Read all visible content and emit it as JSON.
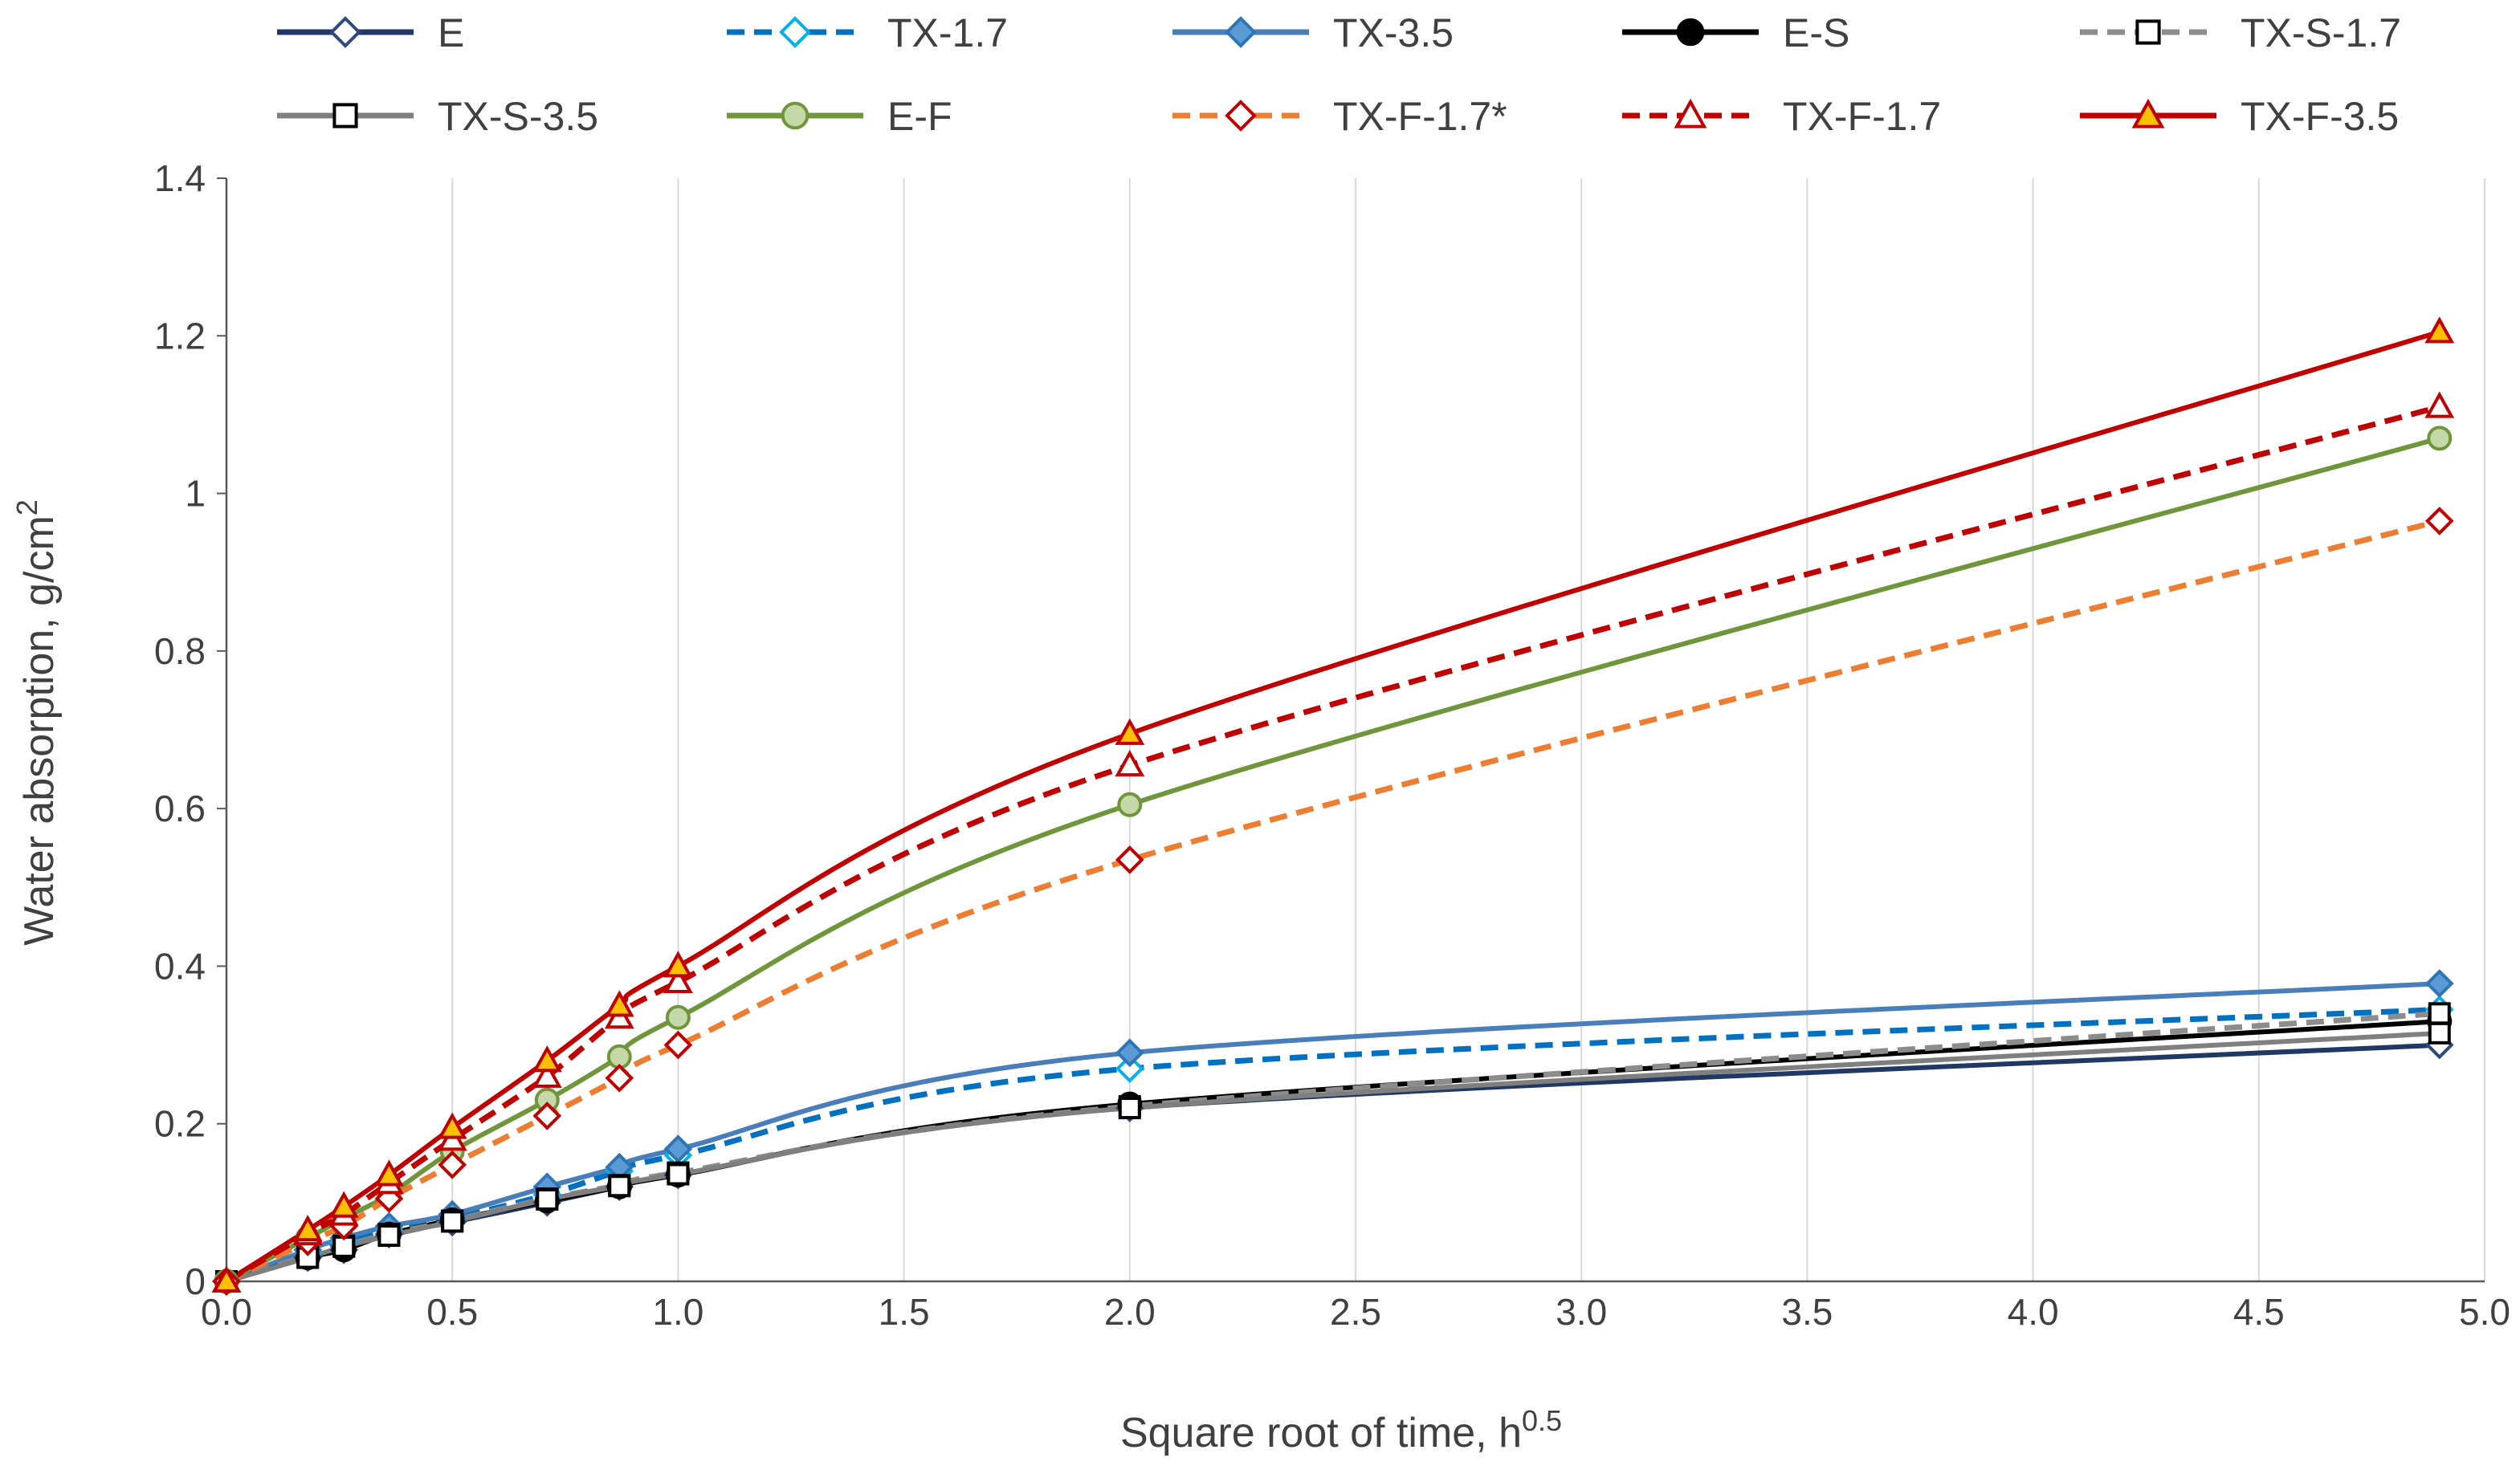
{
  "chart_data": {
    "type": "line",
    "title": "",
    "xlabel": "Square root of time, h",
    "xlabel_superscript": "0.5",
    "ylabel": "Water absorption, g/cm",
    "ylabel_superscript": "2",
    "xlim": [
      0,
      5
    ],
    "ylim": [
      0,
      1.4
    ],
    "x_ticks": [
      "0.0",
      "0.5",
      "1.0",
      "1.5",
      "2.0",
      "2.5",
      "3.0",
      "3.5",
      "4.0",
      "4.5",
      "5.0"
    ],
    "y_ticks": [
      "0",
      "0.2",
      "0.4",
      "0.6",
      "0.8",
      "1",
      "1.2",
      "1.4"
    ],
    "grid": "vertical",
    "legend_position": "top",
    "x": [
      0,
      0.18,
      0.26,
      0.36,
      0.5,
      0.71,
      0.87,
      1.0,
      2.0,
      4.9
    ],
    "series": [
      {
        "name": "E",
        "color": "#1f3864",
        "dash": "solid",
        "marker": "diamond-open",
        "values": [
          0,
          0.03,
          0.04,
          0.06,
          0.075,
          0.1,
          0.12,
          0.135,
          0.22,
          0.3
        ]
      },
      {
        "name": "TX-1.7",
        "color": "#0070c0",
        "dash": "dashed",
        "marker": "diamond-open-cyan",
        "values": [
          0,
          0.035,
          0.05,
          0.065,
          0.08,
          0.11,
          0.14,
          0.16,
          0.27,
          0.345
        ]
      },
      {
        "name": "TX-3.5",
        "color": "#4a7ebb",
        "dash": "solid",
        "marker": "diamond-filled",
        "values": [
          0,
          0.04,
          0.055,
          0.07,
          0.085,
          0.12,
          0.145,
          0.168,
          0.29,
          0.378
        ]
      },
      {
        "name": "E-S",
        "color": "#000000",
        "dash": "solid",
        "marker": "circle-filled",
        "values": [
          0,
          0.03,
          0.04,
          0.06,
          0.078,
          0.102,
          0.12,
          0.135,
          0.225,
          0.33
        ]
      },
      {
        "name": "TX-S-1.7",
        "color": "#8c8c8c",
        "dash": "dashed",
        "marker": "square-open",
        "values": [
          0,
          0.032,
          0.045,
          0.06,
          0.077,
          0.105,
          0.122,
          0.138,
          0.222,
          0.34
        ]
      },
      {
        "name": "TX-S-3.5",
        "color": "#7f7f7f",
        "dash": "solid",
        "marker": "square-open-black",
        "values": [
          0,
          0.03,
          0.044,
          0.058,
          0.076,
          0.104,
          0.121,
          0.136,
          0.22,
          0.315
        ]
      },
      {
        "name": "E-F",
        "color": "#70963c",
        "dash": "solid",
        "marker": "circle-green",
        "values": [
          0,
          0.055,
          0.08,
          0.11,
          0.165,
          0.23,
          0.285,
          0.335,
          0.605,
          1.07
        ]
      },
      {
        "name": "TX-F-1.7*",
        "color": "#ed7d31",
        "dash": "dashed",
        "marker": "diamond-open-red",
        "values": [
          0,
          0.05,
          0.07,
          0.105,
          0.148,
          0.21,
          0.258,
          0.3,
          0.535,
          0.965
        ]
      },
      {
        "name": "TX-F-1.7",
        "color": "#c00000",
        "dash": "dashed",
        "marker": "triangle-open",
        "values": [
          0,
          0.06,
          0.085,
          0.125,
          0.18,
          0.26,
          0.335,
          0.38,
          0.655,
          1.11
        ]
      },
      {
        "name": "TX-F-3.5",
        "color": "#c00000",
        "dash": "solid",
        "marker": "triangle-yellow",
        "values": [
          0,
          0.065,
          0.095,
          0.135,
          0.195,
          0.28,
          0.35,
          0.4,
          0.695,
          1.205
        ]
      }
    ]
  }
}
